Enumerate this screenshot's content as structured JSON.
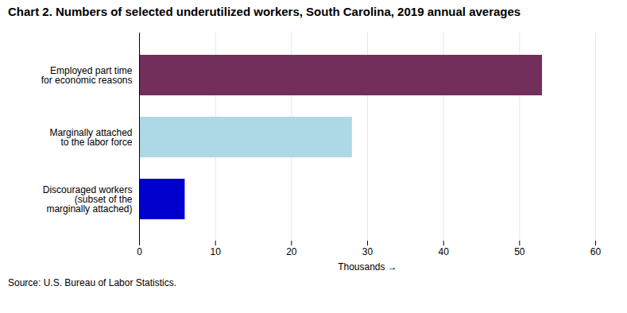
{
  "chart_data": {
    "type": "bar",
    "orientation": "horizontal",
    "title": "Chart 2. Numbers of selected underutilized workers, South Carolina, 2019 annual averages",
    "categories": [
      "Discouraged workers\n(subset of the\nmarginally attached)",
      "Marginally attached\nto the labor force",
      "Employed part time\nfor economic reasons"
    ],
    "values": [
      6,
      28,
      53
    ],
    "colors": [
      "#0000CC",
      "#ADD8E6",
      "#722F5B"
    ],
    "xlabel": "Thousands",
    "xlim": [
      0,
      60
    ],
    "xticks": [
      0,
      10,
      20,
      30,
      40,
      50,
      60
    ],
    "grid": true,
    "source": "Source: U.S. Bureau of Labor Statistics."
  }
}
